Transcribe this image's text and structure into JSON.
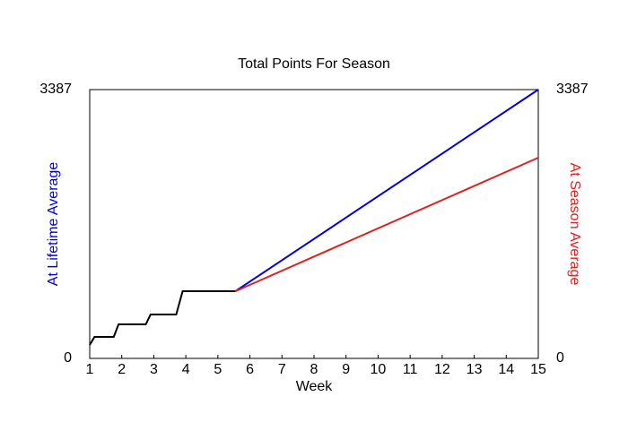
{
  "chart_data": {
    "type": "line",
    "title": "Total Points For Season",
    "xlabel": "Week",
    "x": [
      1,
      1.15,
      1.75,
      1.9,
      2.75,
      2.9,
      3.7,
      3.9,
      5.55,
      15
    ],
    "series": [
      {
        "color": "#000000",
        "values": [
          169,
          271,
          271,
          429,
          429,
          553,
          553,
          847,
          847,
          null
        ]
      },
      {
        "name": "At Lifetime Average",
        "color": "#0000dd",
        "values": [
          null,
          null,
          null,
          null,
          null,
          null,
          null,
          null,
          847,
          3387
        ]
      },
      {
        "name": "At Season Average",
        "color": "#dd2222",
        "axis": "y2",
        "values": [
          null,
          null,
          null,
          null,
          null,
          null,
          null,
          null,
          847,
          2529
        ]
      }
    ],
    "xlim": [
      1,
      15
    ],
    "xticks": [
      1,
      2,
      3,
      4,
      5,
      6,
      7,
      8,
      9,
      10,
      11,
      12,
      13,
      14,
      15
    ],
    "ylim": [
      0,
      3387
    ],
    "yticks": [
      0,
      3387
    ],
    "y2lim": [
      0,
      3387
    ],
    "y2ticks": [
      0,
      3387
    ]
  }
}
